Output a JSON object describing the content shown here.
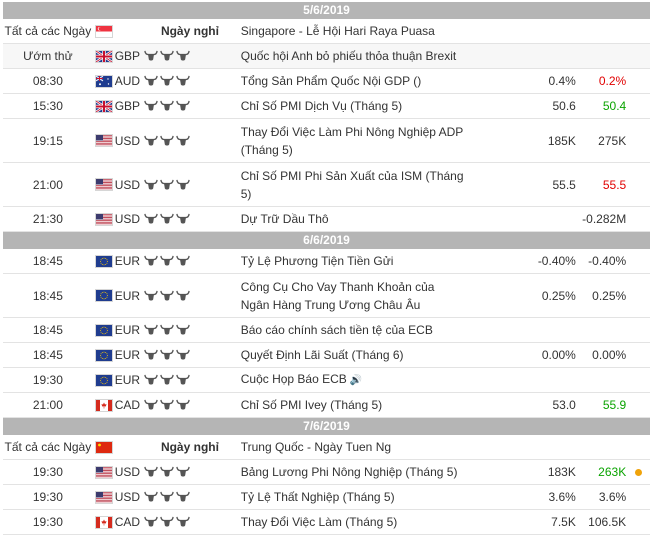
{
  "colors": {
    "date_bar": "#b5b5b5",
    "negative": "#e10000",
    "positive": "#0aa300",
    "alert_dot": "#f0a30a"
  },
  "days": [
    {
      "date": "5/6/2019",
      "rows": [
        {
          "time": "Tất cả các Ngày",
          "flag": "sg",
          "currency": "",
          "importance": "Ngày nghỉ",
          "event": "Singapore - Lễ Hội Hari Raya Puasa",
          "actual": "",
          "forecast": "",
          "previous": "",
          "h": "h25",
          "alt": false,
          "holiday": true
        },
        {
          "time": "Ướm thử",
          "flag": "gb",
          "currency": "GBP",
          "importance": 3,
          "event": "Quốc hội Anh bỏ phiếu thỏa thuận Brexit",
          "actual": "",
          "forecast": "",
          "previous": "",
          "h": "h25",
          "alt": true
        },
        {
          "time": "08:30",
          "flag": "au",
          "currency": "AUD",
          "importance": 3,
          "event": "Tổng Sản Phẩm Quốc Nội GDP ()",
          "actual": "",
          "forecast": "0.4%",
          "previous": "0.2%",
          "prev_color": "red",
          "h": "h25",
          "alt": false
        },
        {
          "time": "15:30",
          "flag": "gb",
          "currency": "GBP",
          "importance": 3,
          "event": "Chỉ Số PMI Dịch Vụ (Tháng 5)",
          "actual": "",
          "forecast": "50.6",
          "previous": "50.4",
          "prev_color": "green",
          "h": "h25",
          "alt": false
        },
        {
          "time": "19:15",
          "flag": "us",
          "currency": "USD",
          "importance": 3,
          "event": "Thay Đổi Việc Làm Phi Nông Nghiệp ADP (Tháng 5)",
          "actual": "",
          "forecast": "185K",
          "previous": "275K",
          "h": "h44",
          "alt": false
        },
        {
          "time": "21:00",
          "flag": "us",
          "currency": "USD",
          "importance": 3,
          "event": "Chỉ Số PMI Phi Sản Xuất của ISM (Tháng 5)",
          "actual": "",
          "forecast": "55.5",
          "previous": "55.5",
          "prev_color": "red",
          "h": "h44",
          "alt": false
        },
        {
          "time": "21:30",
          "flag": "us",
          "currency": "USD",
          "importance": 3,
          "event": "Dự Trữ Dầu Thô",
          "actual": "",
          "forecast": "",
          "previous": "-0.282M",
          "h": "h25",
          "alt": false
        }
      ]
    },
    {
      "date": "6/6/2019",
      "rows": [
        {
          "time": "18:45",
          "flag": "eu",
          "currency": "EUR",
          "importance": 3,
          "event": "Tỷ Lệ Phương Tiện Tiền Gửi",
          "actual": "",
          "forecast": "-0.40%",
          "previous": "-0.40%",
          "h": "h25",
          "alt": false
        },
        {
          "time": "18:45",
          "flag": "eu",
          "currency": "EUR",
          "importance": 3,
          "event": "Công Cụ Cho Vay Thanh Khoản của Ngân Hàng Trung Ương Châu Âu",
          "actual": "",
          "forecast": "0.25%",
          "previous": "0.25%",
          "h": "h44",
          "alt": false
        },
        {
          "time": "18:45",
          "flag": "eu",
          "currency": "EUR",
          "importance": 3,
          "event": "Báo cáo chính sách tiền tệ của ECB",
          "actual": "",
          "forecast": "",
          "previous": "",
          "h": "h25",
          "alt": false
        },
        {
          "time": "18:45",
          "flag": "eu",
          "currency": "EUR",
          "importance": 3,
          "event": "Quyết Định Lãi Suất (Tháng 6)",
          "actual": "",
          "forecast": "0.00%",
          "previous": "0.00%",
          "h": "h25",
          "alt": false
        },
        {
          "time": "19:30",
          "flag": "eu",
          "currency": "EUR",
          "importance": 3,
          "event": "Cuộc Họp Báo ECB",
          "speaker": "🔊",
          "actual": "",
          "forecast": "",
          "previous": "",
          "h": "h25",
          "alt": false
        },
        {
          "time": "21:00",
          "flag": "ca",
          "currency": "CAD",
          "importance": 3,
          "event": "Chỉ Số PMI Ivey (Tháng 5)",
          "actual": "",
          "forecast": "53.0",
          "previous": "55.9",
          "prev_color": "green",
          "h": "h25",
          "alt": false
        }
      ]
    },
    {
      "date": "7/6/2019",
      "rows": [
        {
          "time": "Tất cả các Ngày",
          "flag": "cn",
          "currency": "",
          "importance": "Ngày nghỉ",
          "event": "Trung Quốc - Ngày Tuen Ng",
          "actual": "",
          "forecast": "",
          "previous": "",
          "h": "h25",
          "alt": false,
          "holiday": true
        },
        {
          "time": "19:30",
          "flag": "us",
          "currency": "USD",
          "importance": 3,
          "event": "Bảng Lương Phi Nông Nghiệp (Tháng 5)",
          "actual": "",
          "forecast": "183K",
          "previous": "263K",
          "prev_color": "green",
          "dot": true,
          "h": "h25",
          "alt": false
        },
        {
          "time": "19:30",
          "flag": "us",
          "currency": "USD",
          "importance": 3,
          "event": "Tỷ Lệ Thất Nghiệp (Tháng 5)",
          "actual": "",
          "forecast": "3.6%",
          "previous": "3.6%",
          "h": "h25",
          "alt": false
        },
        {
          "time": "19:30",
          "flag": "ca",
          "currency": "CAD",
          "importance": 3,
          "event": "Thay Đổi Việc Làm (Tháng 5)",
          "actual": "",
          "forecast": "7.5K",
          "previous": "106.5K",
          "h": "h25",
          "alt": false
        }
      ]
    }
  ]
}
